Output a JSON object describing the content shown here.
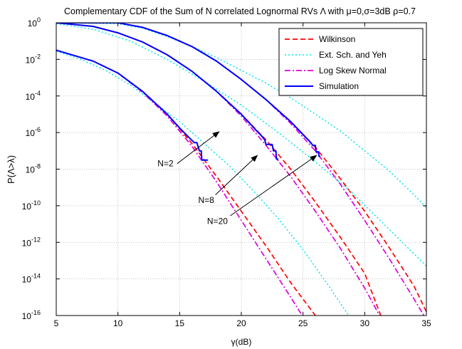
{
  "chart_data": {
    "type": "line",
    "title": "Complementary CDF of the Sum of N correlated Lognormal RVs Λ with μ=0,σ=3dB ρ=0.7",
    "xlabel": "γ(dB)",
    "ylabel": "P(Λ>λ)",
    "xlim": [
      5,
      35
    ],
    "ylim_log10": [
      -16,
      0
    ],
    "yscale": "log",
    "grid": true,
    "legend_position": "top-right",
    "x_ticks": [
      5,
      10,
      15,
      20,
      25,
      30,
      35
    ],
    "y_ticks_exponents": [
      0,
      -2,
      -4,
      -6,
      -8,
      -10,
      -12,
      -14,
      -16
    ],
    "series": [
      {
        "name": "Wilkinson",
        "color": "#ff0000",
        "style": "dashed",
        "curves": [
          {
            "group": "N=2",
            "points": [
              [
                5,
                -1.5
              ],
              [
                8,
                -2.1
              ],
              [
                10,
                -2.75
              ],
              [
                12,
                -3.75
              ],
              [
                14,
                -5.0
              ],
              [
                16,
                -6.6
              ],
              [
                18,
                -8.4
              ],
              [
                20,
                -10.3
              ],
              [
                22,
                -12.2
              ],
              [
                24,
                -14.2
              ],
              [
                26,
                -16.0
              ],
              [
                26.7,
                -16.6
              ]
            ]
          },
          {
            "group": "N=8",
            "points": [
              [
                5,
                0
              ],
              [
                8,
                -0.2
              ],
              [
                10,
                -0.55
              ],
              [
                12,
                -1.05
              ],
              [
                14,
                -1.75
              ],
              [
                16,
                -2.65
              ],
              [
                18,
                -3.75
              ],
              [
                20,
                -5.0
              ],
              [
                22,
                -6.4
              ],
              [
                24,
                -8.0
              ],
              [
                26,
                -9.8
              ],
              [
                28,
                -11.7
              ],
              [
                30,
                -13.7
              ],
              [
                31.3,
                -16.0
              ]
            ]
          },
          {
            "group": "N=20",
            "points": [
              [
                5,
                0
              ],
              [
                10,
                0
              ],
              [
                12,
                -0.25
              ],
              [
                14,
                -0.7
              ],
              [
                16,
                -1.3
              ],
              [
                18,
                -2.1
              ],
              [
                20,
                -3.1
              ],
              [
                22,
                -4.2
              ],
              [
                24,
                -5.4
              ],
              [
                26,
                -6.8
              ],
              [
                28,
                -8.5
              ],
              [
                30,
                -10.3
              ],
              [
                32,
                -12.3
              ],
              [
                34,
                -14.4
              ],
              [
                35,
                -15.8
              ]
            ]
          }
        ]
      },
      {
        "name": "Ext. Sch. and Yeh",
        "color": "#00e5ee",
        "style": "dotted",
        "curves": [
          {
            "group": "N=2",
            "points": [
              [
                5,
                -1.55
              ],
              [
                7,
                -2.0
              ],
              [
                9,
                -2.6
              ],
              [
                11,
                -3.4
              ],
              [
                13,
                -4.4
              ],
              [
                15,
                -5.4
              ],
              [
                17,
                -6.6
              ],
              [
                19,
                -7.8
              ],
              [
                21,
                -9.2
              ],
              [
                23,
                -10.7
              ],
              [
                25,
                -12.4
              ],
              [
                27,
                -14.3
              ],
              [
                29,
                -16.3
              ]
            ]
          },
          {
            "group": "N=8",
            "points": [
              [
                5,
                -0.05
              ],
              [
                8,
                -0.35
              ],
              [
                11,
                -1.0
              ],
              [
                14,
                -2.0
              ],
              [
                17,
                -3.2
              ],
              [
                20,
                -4.5
              ],
              [
                23,
                -6.0
              ],
              [
                26,
                -7.6
              ],
              [
                29,
                -9.3
              ],
              [
                32,
                -11.3
              ],
              [
                35,
                -13.3
              ]
            ]
          },
          {
            "group": "N=20",
            "points": [
              [
                5,
                0
              ],
              [
                10,
                -0.05
              ],
              [
                12,
                -0.3
              ],
              [
                14,
                -0.75
              ],
              [
                16,
                -1.3
              ],
              [
                18,
                -1.9
              ],
              [
                20,
                -2.6
              ],
              [
                22,
                -3.3
              ],
              [
                24,
                -4.1
              ],
              [
                26,
                -5.0
              ],
              [
                28,
                -5.9
              ],
              [
                30,
                -7.0
              ],
              [
                32,
                -8.1
              ],
              [
                34,
                -9.4
              ],
              [
                35,
                -10.1
              ]
            ]
          }
        ]
      },
      {
        "name": "Log Skew Normal",
        "color": "#dd00dd",
        "style": "dashdot",
        "curves": [
          {
            "group": "N=2",
            "points": [
              [
                5,
                -1.5
              ],
              [
                8,
                -2.1
              ],
              [
                10,
                -2.75
              ],
              [
                12,
                -3.8
              ],
              [
                14,
                -5.1
              ],
              [
                16,
                -6.75
              ],
              [
                18,
                -8.7
              ],
              [
                20,
                -10.8
              ],
              [
                22,
                -12.9
              ],
              [
                24,
                -15.0
              ],
              [
                25.4,
                -16.5
              ]
            ]
          },
          {
            "group": "N=8",
            "points": [
              [
                5,
                0
              ],
              [
                8,
                -0.2
              ],
              [
                10,
                -0.55
              ],
              [
                12,
                -1.05
              ],
              [
                14,
                -1.75
              ],
              [
                16,
                -2.65
              ],
              [
                18,
                -3.75
              ],
              [
                20,
                -5.1
              ],
              [
                22,
                -6.7
              ],
              [
                24,
                -8.4
              ],
              [
                26,
                -10.3
              ],
              [
                28,
                -12.3
              ],
              [
                30,
                -14.5
              ],
              [
                31.2,
                -16.0
              ]
            ]
          },
          {
            "group": "N=20",
            "points": [
              [
                5,
                0
              ],
              [
                10,
                0
              ],
              [
                12,
                -0.25
              ],
              [
                14,
                -0.7
              ],
              [
                16,
                -1.3
              ],
              [
                18,
                -2.1
              ],
              [
                20,
                -3.1
              ],
              [
                22,
                -4.2
              ],
              [
                24,
                -5.5
              ],
              [
                26,
                -7.0
              ],
              [
                28,
                -8.8
              ],
              [
                30,
                -10.8
              ],
              [
                32,
                -12.9
              ],
              [
                34,
                -15.1
              ],
              [
                34.8,
                -16.0
              ]
            ]
          }
        ]
      },
      {
        "name": "Simulation",
        "color": "#0000ff",
        "style": "solid",
        "curves": [
          {
            "group": "N=2",
            "points": [
              [
                5,
                -1.5
              ],
              [
                8,
                -2.1
              ],
              [
                10,
                -2.75
              ],
              [
                12,
                -3.75
              ],
              [
                14,
                -5.0
              ],
              [
                15,
                -5.75
              ],
              [
                15.8,
                -6.3
              ],
              [
                16.2,
                -6.55
              ],
              [
                16.4,
                -6.55
              ],
              [
                16.6,
                -7.0
              ],
              [
                16.75,
                -7.0
              ],
              [
                16.8,
                -7.5
              ],
              [
                17.3,
                -7.5
              ]
            ]
          },
          {
            "group": "N=8",
            "points": [
              [
                5,
                0
              ],
              [
                8,
                -0.2
              ],
              [
                10,
                -0.55
              ],
              [
                12,
                -1.05
              ],
              [
                14,
                -1.75
              ],
              [
                16,
                -2.65
              ],
              [
                18,
                -3.75
              ],
              [
                20,
                -5.0
              ],
              [
                21.3,
                -5.95
              ],
              [
                21.6,
                -6.15
              ],
              [
                21.9,
                -6.4
              ],
              [
                22.0,
                -6.65
              ],
              [
                22.5,
                -6.65
              ],
              [
                22.6,
                -7.0
              ],
              [
                22.8,
                -7.0
              ],
              [
                22.85,
                -7.45
              ],
              [
                23.0,
                -7.45
              ]
            ]
          },
          {
            "group": "N=20",
            "points": [
              [
                5,
                0
              ],
              [
                10,
                0
              ],
              [
                12,
                -0.25
              ],
              [
                14,
                -0.7
              ],
              [
                16,
                -1.3
              ],
              [
                18,
                -2.1
              ],
              [
                20,
                -3.1
              ],
              [
                22,
                -4.2
              ],
              [
                24,
                -5.4
              ],
              [
                25.2,
                -6.25
              ],
              [
                25.5,
                -6.45
              ],
              [
                25.8,
                -6.7
              ],
              [
                26.0,
                -6.7
              ],
              [
                26.05,
                -7.05
              ],
              [
                26.25,
                -7.05
              ],
              [
                26.3,
                -7.3
              ],
              [
                26.4,
                -7.3
              ]
            ]
          }
        ]
      }
    ],
    "annotations": [
      {
        "text": "N=2",
        "text_at": [
          14.5,
          -7.85
        ],
        "arrow_from": [
          14.8,
          -7.7
        ],
        "arrow_to": [
          18.2,
          -5.95
        ]
      },
      {
        "text": "N=8",
        "text_at": [
          17.8,
          -9.85
        ],
        "arrow_from": [
          17.9,
          -9.4
        ],
        "arrow_to": [
          21.3,
          -7.25
        ]
      },
      {
        "text": "N=20",
        "text_at": [
          18.9,
          -11.0
        ],
        "arrow_from": [
          19.1,
          -10.55
        ],
        "arrow_to": [
          26.1,
          -7.25
        ]
      }
    ]
  }
}
